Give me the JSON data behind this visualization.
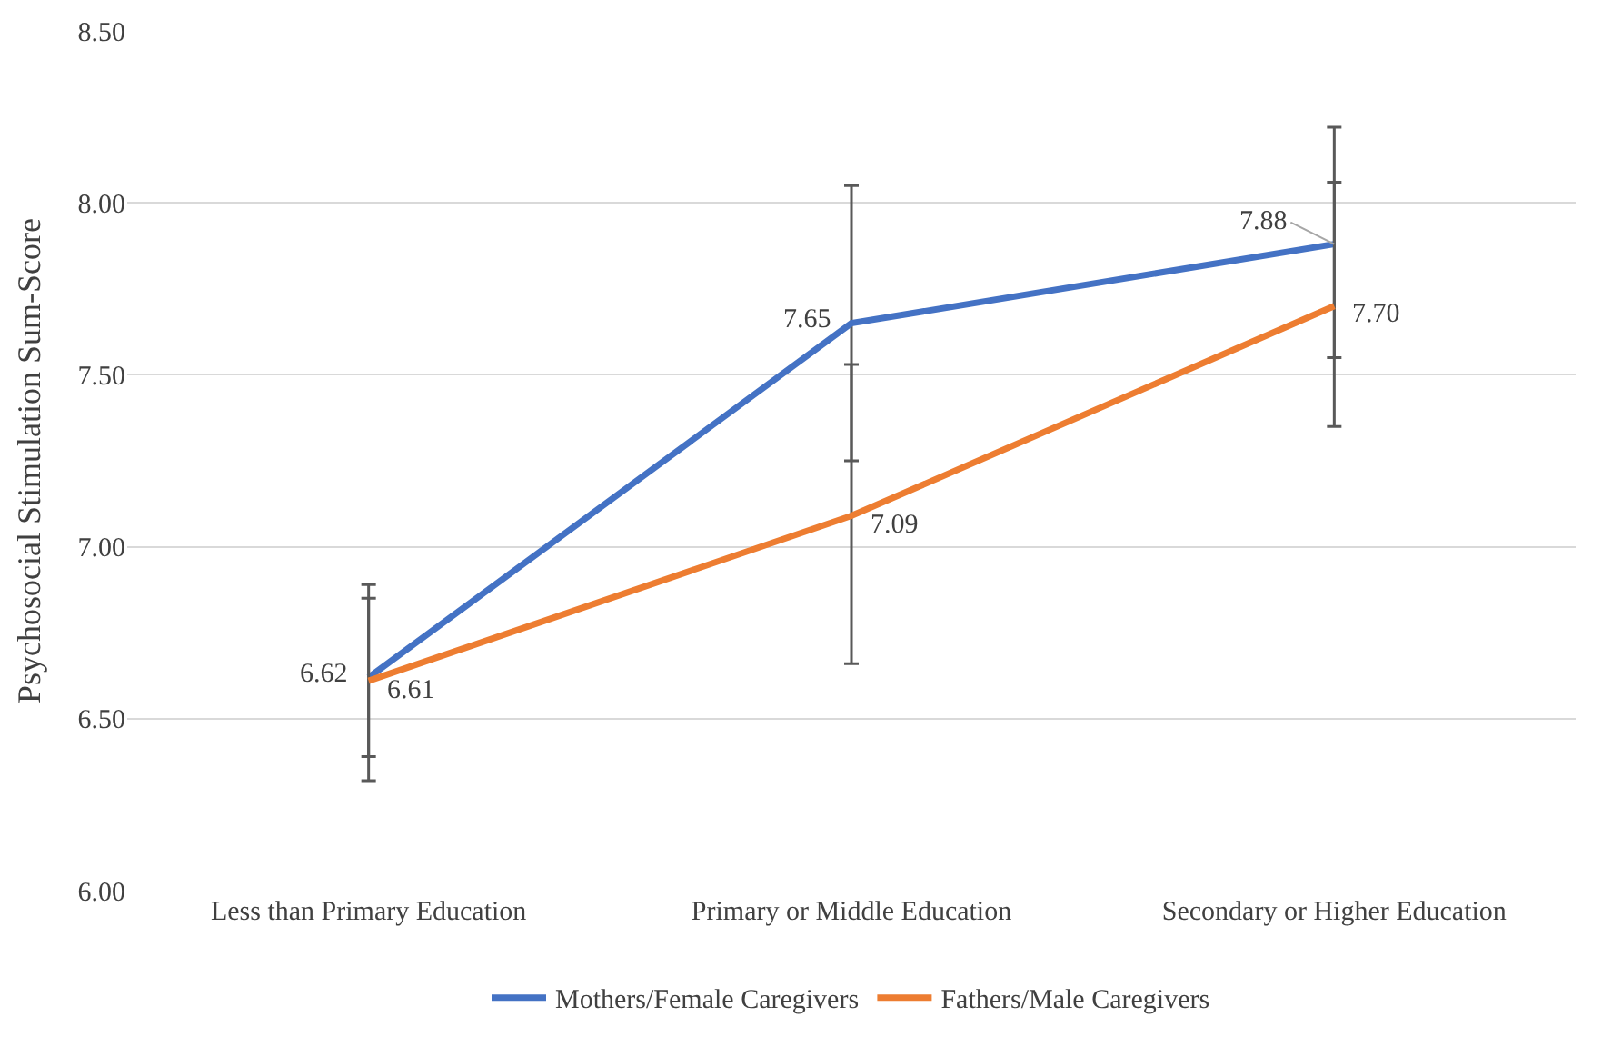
{
  "chart_data": {
    "type": "line",
    "ylabel": "Psychosocial Stimulation Sum-Score",
    "categories": [
      "Less than Primary Education",
      "Primary or Middle Education",
      "Secondary or Higher Education"
    ],
    "series": [
      {
        "name": "Mothers/Female Caregivers",
        "color": "#4472c4",
        "values": [
          6.62,
          7.65,
          7.88
        ],
        "value_labels": [
          "6.62",
          "7.65",
          "7.88"
        ],
        "errors": [
          [
            6.39,
            6.85
          ],
          [
            7.25,
            8.05
          ],
          [
            7.55,
            8.22
          ]
        ]
      },
      {
        "name": "Fathers/Male Caregivers",
        "color": "#ed7d31",
        "values": [
          6.61,
          7.09,
          7.7
        ],
        "value_labels": [
          "6.61",
          "7.09",
          "7.70"
        ],
        "errors": [
          [
            6.32,
            6.89
          ],
          [
            6.66,
            7.53
          ],
          [
            7.35,
            8.06
          ]
        ]
      }
    ],
    "ylim": [
      6.0,
      8.5
    ],
    "yticks": [
      {
        "value": 6.0,
        "label": "6.00"
      },
      {
        "value": 6.5,
        "label": "6.50"
      },
      {
        "value": 7.0,
        "label": "7.00"
      },
      {
        "value": 7.5,
        "label": "7.50"
      },
      {
        "value": 8.0,
        "label": "8.00"
      },
      {
        "value": 8.5,
        "label": "8.50"
      }
    ],
    "grid": "y",
    "legend": "bottom",
    "marker": "none",
    "line_style": "solid"
  }
}
